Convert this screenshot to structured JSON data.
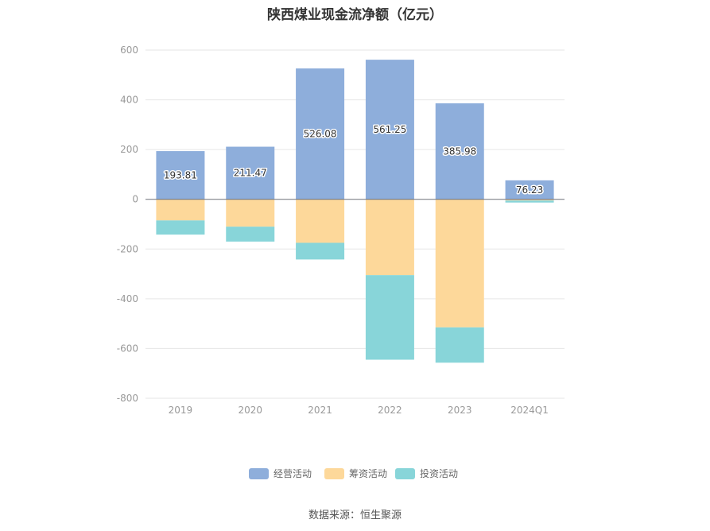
{
  "title": "陕西煤业现金流净额（亿元）",
  "source": "数据来源：恒生聚源",
  "chart_data": {
    "type": "bar",
    "stacked": true,
    "title": "陕西煤业现金流净额（亿元）",
    "categories": [
      "2019",
      "2020",
      "2021",
      "2022",
      "2023",
      "2024Q1"
    ],
    "series": [
      {
        "name": "经营活动",
        "color": "#8eaedb",
        "values": [
          193.81,
          211.47,
          526.08,
          561.25,
          385.98,
          76.23
        ],
        "labels": [
          "193.81",
          "211.47",
          "526.08",
          "561.25",
          "385.98",
          "76.23"
        ]
      },
      {
        "name": "筹资活动",
        "color": "#fdd89a",
        "values": [
          -85,
          -110,
          -175,
          -305,
          -515,
          -5
        ]
      },
      {
        "name": "投资活动",
        "color": "#88d5d9",
        "values": [
          -57,
          -60,
          -67,
          -340,
          -142,
          -8
        ]
      }
    ],
    "ylim": [
      -800,
      600
    ],
    "yticks": [
      600,
      400,
      200,
      0,
      -200,
      -400,
      -600,
      -800
    ],
    "grid": true,
    "legend": "bottom"
  }
}
